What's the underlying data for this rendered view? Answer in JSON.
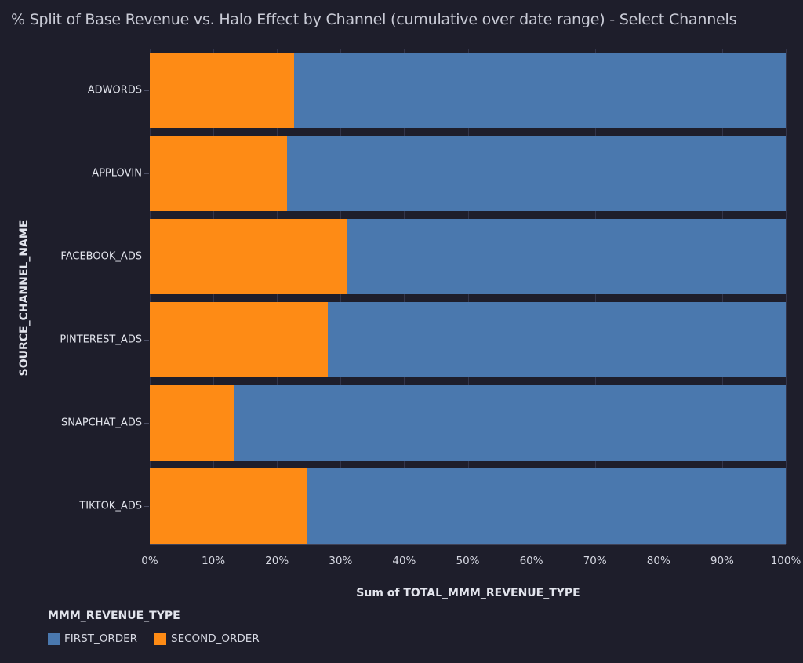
{
  "title": "% Split of Base Revenue vs. Halo Effect by Channel (cumulative over date range) - Select Channels",
  "colors": {
    "FIRST_ORDER": "#4a78ae",
    "SECOND_ORDER": "#fe8b15",
    "background": "#1e1e2b"
  },
  "axes": {
    "y_title": "SOURCE_CHANNEL_NAME",
    "x_title": "Sum of TOTAL_MMM_REVENUE_TYPE",
    "x_ticks": [
      "0%",
      "10%",
      "20%",
      "30%",
      "40%",
      "50%",
      "60%",
      "70%",
      "80%",
      "90%",
      "100%"
    ]
  },
  "legend": {
    "title": "MMM_REVENUE_TYPE",
    "items": [
      {
        "label": "FIRST_ORDER",
        "color": "#4a78ae"
      },
      {
        "label": "SECOND_ORDER",
        "color": "#fe8b15"
      }
    ]
  },
  "chart_data": {
    "type": "bar",
    "orientation": "horizontal",
    "stacked": "normalized_percent",
    "title": "% Split of Base Revenue vs. Halo Effect by Channel (cumulative over date range) - Select Channels",
    "xlabel": "Sum of TOTAL_MMM_REVENUE_TYPE",
    "ylabel": "SOURCE_CHANNEL_NAME",
    "xlim": [
      0,
      100
    ],
    "x_tick_labels": [
      "0%",
      "10%",
      "20%",
      "30%",
      "40%",
      "50%",
      "60%",
      "70%",
      "80%",
      "90%",
      "100%"
    ],
    "grid": true,
    "legend_position": "bottom-left",
    "legend_title": "MMM_REVENUE_TYPE",
    "categories": [
      "ADWORDS",
      "APPLOVIN",
      "FACEBOOK_ADS",
      "PINTEREST_ADS",
      "SNAPCHAT_ADS",
      "TIKTOK_ADS"
    ],
    "series": [
      {
        "name": "SECOND_ORDER",
        "color": "#fe8b15",
        "values": [
          22.7,
          21.6,
          31.1,
          28.0,
          13.3,
          24.7
        ]
      },
      {
        "name": "FIRST_ORDER",
        "color": "#4a78ae",
        "values": [
          77.3,
          78.4,
          68.9,
          72.0,
          86.7,
          75.3
        ]
      }
    ]
  }
}
